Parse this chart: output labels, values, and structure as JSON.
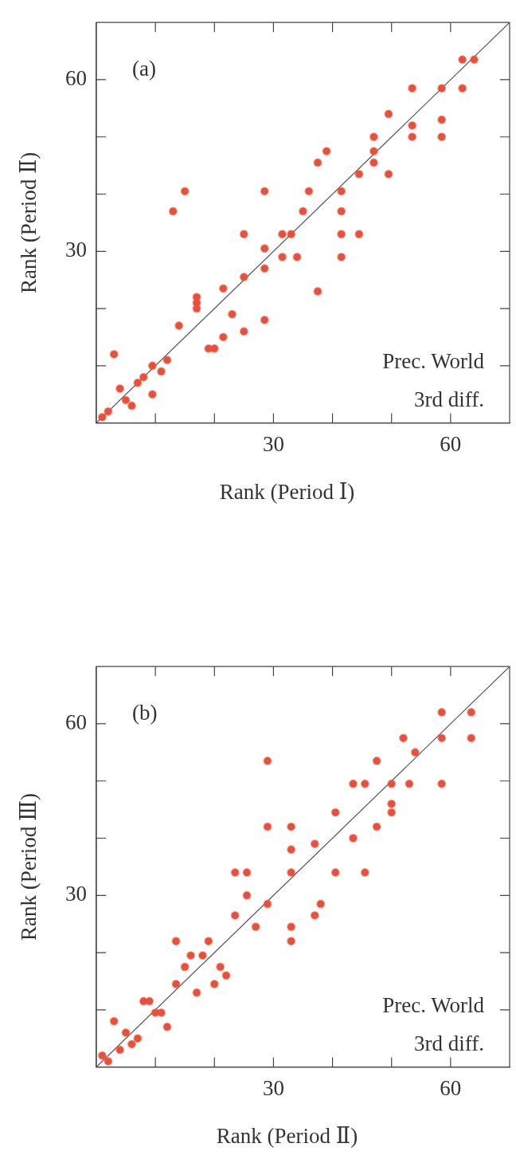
{
  "chart_data": [
    {
      "type": "scatter",
      "xlabel": "Rank (Period Ⅰ)",
      "ylabel": "Rank (Period Ⅱ)",
      "annotations": [
        "(a)",
        "Prec. World",
        "3rd diff."
      ],
      "xlim": [
        0,
        70
      ],
      "ylim": [
        0,
        70
      ],
      "xticks": [
        {
          "value": 10,
          "label": null
        },
        {
          "value": 20,
          "label": null
        },
        {
          "value": 30,
          "label": "30"
        },
        {
          "value": 40,
          "label": null
        },
        {
          "value": 50,
          "label": null
        },
        {
          "value": 60,
          "label": "60"
        }
      ],
      "yticks": [
        {
          "value": 10,
          "label": null
        },
        {
          "value": 20,
          "label": null
        },
        {
          "value": 30,
          "label": "30"
        },
        {
          "value": 40,
          "label": null
        },
        {
          "value": 50,
          "label": null
        },
        {
          "value": 60,
          "label": "60"
        }
      ],
      "grid": false,
      "marker": "circle",
      "series": [
        {
          "type": "scatter",
          "color": "#e8503a",
          "x": [
            1,
            2,
            3,
            4,
            5,
            6,
            7,
            8,
            9.5,
            9.5,
            11,
            12,
            14,
            13,
            15,
            17,
            17,
            17,
            19,
            20,
            21.5,
            21.5,
            23,
            25,
            25,
            25,
            28.5,
            28.5,
            28.5,
            28.5,
            31.5,
            31.5,
            33,
            34,
            36,
            35,
            37.5,
            37.5,
            39,
            41.5,
            41.5,
            41.5,
            41.5,
            44.5,
            44.5,
            47,
            47,
            47,
            49.5,
            49.5,
            53.5,
            53.5,
            53.5,
            58.5,
            58.5,
            58.5,
            62,
            64,
            62
          ],
          "values": [
            1,
            2,
            12,
            6,
            4,
            3,
            7,
            8,
            5,
            10,
            9,
            11,
            17,
            37,
            40.5,
            22,
            21,
            20,
            13,
            13,
            15,
            23.5,
            19,
            25.5,
            33,
            16,
            30.5,
            27,
            18,
            40.5,
            33,
            29,
            33,
            29,
            40.5,
            37,
            23,
            45.5,
            47.5,
            40.5,
            37,
            33,
            29,
            43.5,
            33,
            50,
            47.5,
            45.5,
            54,
            43.5,
            58.5,
            52,
            50,
            58.5,
            53,
            50,
            63.5,
            63.5,
            58.5
          ]
        },
        {
          "type": "line",
          "color": "#555555",
          "marker": "none",
          "x": [
            0,
            70
          ],
          "values": [
            0,
            70
          ]
        }
      ]
    },
    {
      "type": "scatter",
      "xlabel": "Rank (Period Ⅱ)",
      "ylabel": "Rank (Period Ⅲ)",
      "annotations": [
        "(b)",
        "Prec. World",
        "3rd diff."
      ],
      "xlim": [
        0,
        70
      ],
      "ylim": [
        0,
        70
      ],
      "xticks": [
        {
          "value": 10,
          "label": null
        },
        {
          "value": 20,
          "label": null
        },
        {
          "value": 30,
          "label": "30"
        },
        {
          "value": 40,
          "label": null
        },
        {
          "value": 50,
          "label": null
        },
        {
          "value": 60,
          "label": "60"
        }
      ],
      "yticks": [
        {
          "value": 10,
          "label": null
        },
        {
          "value": 20,
          "label": null
        },
        {
          "value": 30,
          "label": "30"
        },
        {
          "value": 40,
          "label": null
        },
        {
          "value": 50,
          "label": null
        },
        {
          "value": 60,
          "label": "60"
        }
      ],
      "grid": false,
      "marker": "circle",
      "series": [
        {
          "type": "scatter",
          "color": "#e8503a",
          "x": [
            1,
            2,
            3,
            4,
            5,
            6,
            7,
            8,
            9,
            10,
            11,
            12,
            13.5,
            13.5,
            15,
            16,
            17,
            18,
            19,
            20,
            21,
            22,
            23.5,
            25.5,
            25.5,
            23.5,
            27,
            29,
            29,
            29,
            33,
            33,
            33,
            33,
            33,
            37,
            37,
            38,
            40.5,
            40.5,
            43.5,
            45.5,
            43.5,
            45.5,
            47.5,
            47.5,
            50,
            50,
            50,
            52,
            53,
            54,
            58.5,
            58.5,
            58.5,
            63.5,
            63.5
          ],
          "values": [
            2,
            1,
            8,
            3,
            6,
            4,
            5,
            11.5,
            11.5,
            9.5,
            9.5,
            7,
            14.5,
            22,
            17.5,
            19.5,
            13,
            19.5,
            22,
            14.5,
            17.5,
            16,
            34,
            34,
            30,
            26.5,
            24.5,
            28.5,
            53.5,
            42,
            42,
            38,
            34,
            24.5,
            22,
            39,
            26.5,
            28.5,
            44.5,
            34,
            49.5,
            49.5,
            40,
            34,
            53.5,
            42,
            49.5,
            46,
            44.5,
            57.5,
            49.5,
            55,
            62,
            57.5,
            49.5,
            62,
            57.5
          ]
        },
        {
          "type": "line",
          "color": "#555555",
          "marker": "none",
          "x": [
            0,
            70
          ],
          "values": [
            0,
            70
          ]
        }
      ]
    }
  ]
}
